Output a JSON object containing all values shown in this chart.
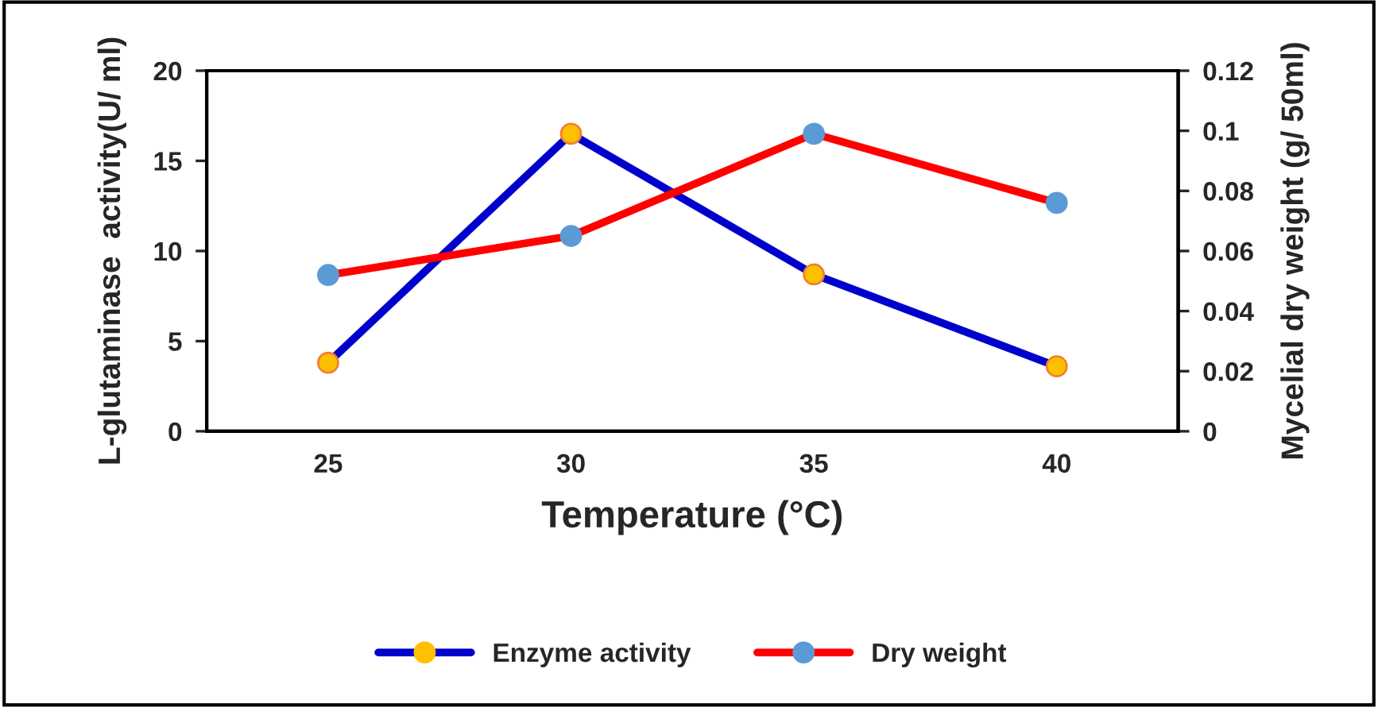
{
  "chart_data": {
    "type": "line",
    "categories": [
      "25",
      "30",
      "35",
      "40"
    ],
    "xlabel": "Temperature (°C)",
    "ylabel": "L-glutaminase  activity(U/ ml)",
    "y2label": "Mycelial dry weight (g/ 50ml)",
    "series": [
      {
        "name": "Enzyme activity",
        "color": "#0000cc",
        "colors": [
          "#ffc000",
          "#ffc000",
          "#ffc000",
          "#ffc000"
        ],
        "values": [
          3.8,
          16.5,
          8.7,
          3.6
        ]
      },
      {
        "name": "Dry weight",
        "color": "#ff0000",
        "colors": [
          "#5b9bd5",
          "#5b9bd5",
          "#5b9bd5",
          "#5b9bd5"
        ],
        "values": [
          0.052,
          0.065,
          0.099,
          0.076
        ],
        "axis": "y2"
      }
    ],
    "ylim": [
      0,
      20
    ],
    "yticks": [
      0,
      5,
      10,
      15,
      20
    ],
    "y2lim": [
      0,
      0.12
    ],
    "y2ticks": [
      0,
      0.02,
      0.04,
      0.06,
      0.08,
      0.1,
      0.12
    ],
    "marker": "circle",
    "line_style": "solid",
    "grid": false,
    "legend": "bottom"
  }
}
